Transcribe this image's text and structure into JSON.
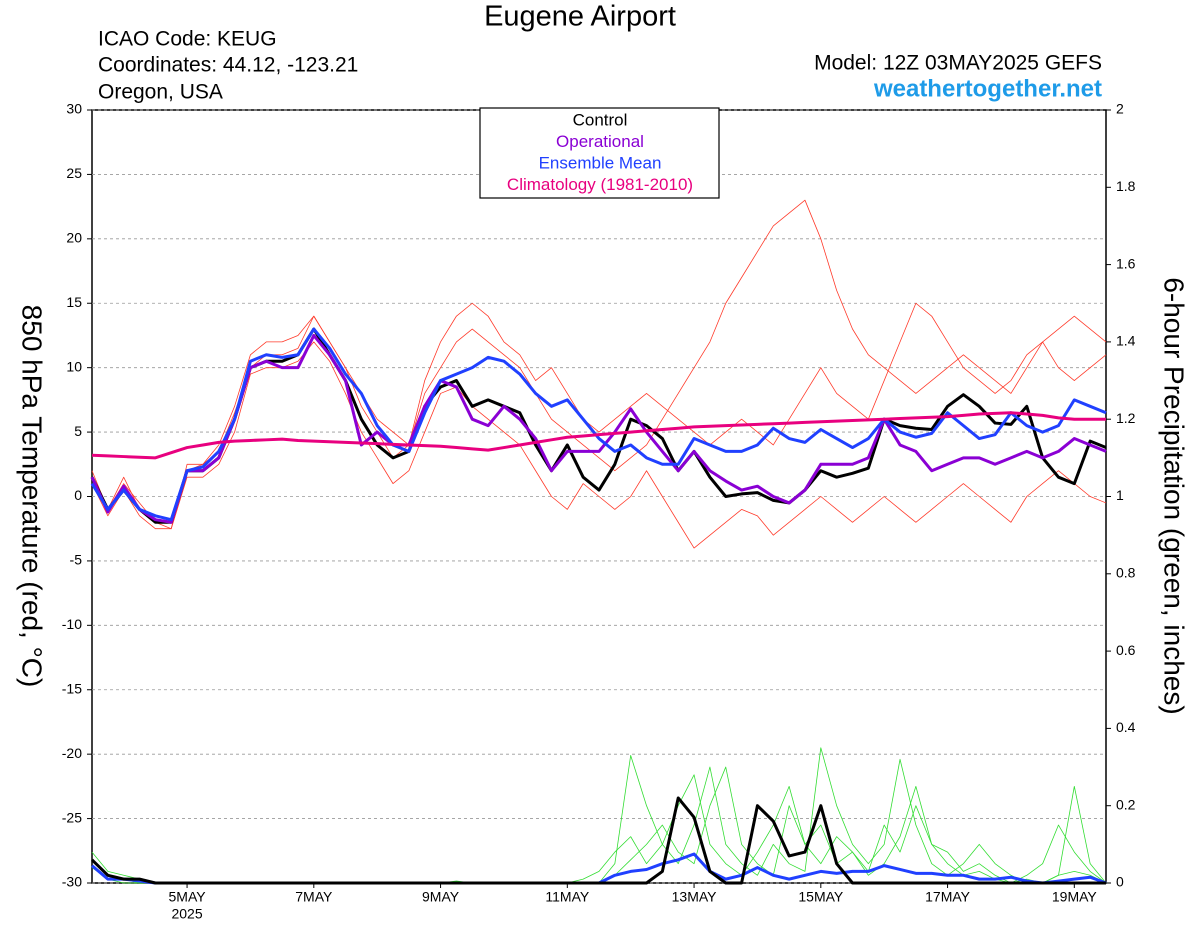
{
  "chart_data": {
    "type": "line",
    "title": "Eugene Airport",
    "info_left": [
      "ICAO Code: KEUG",
      "Coordinates: 44.12, -123.21",
      "Oregon, USA"
    ],
    "model": "Model: 12Z 03MAY2025 GEFS",
    "source": "weathertogether.net",
    "ylabel": "850 hPa Temperature (red, °C)",
    "y2label": "6-hour Precipitation (green, inches)",
    "categories": [
      null,
      null,
      null,
      null,
      null,
      null,
      "5MAY",
      null,
      null,
      null,
      null,
      null,
      null,
      null,
      "7MAY",
      null,
      null,
      null,
      null,
      null,
      null,
      null,
      "9MAY",
      null,
      null,
      null,
      null,
      null,
      null,
      null,
      "11MAY",
      null,
      null,
      null,
      null,
      null,
      null,
      null,
      "13MAY",
      null,
      null,
      null,
      null,
      null,
      null,
      null,
      "15MAY",
      null,
      null,
      null,
      null,
      null,
      null,
      null,
      "17MAY",
      null,
      null,
      null,
      null,
      null,
      null,
      null,
      "19MAY",
      null,
      null
    ],
    "x_year_label": "2025",
    "ylim": [
      -30,
      30
    ],
    "yticks": [
      -30,
      -25,
      -20,
      -15,
      -10,
      -5,
      0,
      5,
      10,
      15,
      20,
      25,
      30
    ],
    "y2lim": [
      0,
      2
    ],
    "y2ticks": [
      0,
      0.2,
      0.4,
      0.6,
      0.8,
      1,
      1.2,
      1.4,
      1.6,
      1.8,
      2
    ],
    "grid": true,
    "series": [
      {
        "color": "#ff3a2a",
        "values": [
          1.5,
          -1,
          1,
          -0.5,
          -2,
          -2.5,
          2.5,
          2.5,
          4,
          7,
          11,
          12,
          12,
          12.5,
          14,
          12,
          10,
          7,
          5,
          3,
          4,
          8,
          10,
          12,
          13,
          12,
          11,
          10,
          8,
          6,
          5,
          4,
          3,
          2,
          3,
          4,
          6,
          8,
          10,
          12,
          15,
          17,
          19,
          21,
          22,
          23,
          20,
          16,
          13,
          11,
          10,
          9,
          8,
          9,
          10,
          11,
          10,
          9,
          8,
          10,
          12,
          13,
          14,
          13,
          12
        ]
      },
      {
        "color": "#ff3a2a",
        "values": [
          1,
          -1.5,
          0.5,
          -1.5,
          -2.5,
          -2.5,
          1.5,
          1.5,
          2.5,
          5,
          9.5,
          10,
          10,
          10.5,
          12,
          10.5,
          8,
          5,
          3,
          1,
          2,
          5,
          8,
          8.5,
          7,
          6,
          5,
          4,
          2,
          0,
          -1,
          1,
          0,
          -1,
          0,
          2,
          0,
          -2,
          -4,
          -3,
          -2,
          -1,
          -1.5,
          -3,
          -2,
          -1,
          0,
          -1,
          -2,
          -1,
          0,
          -1,
          -2,
          -1,
          0,
          1,
          0,
          -1,
          -2,
          0,
          1,
          2,
          1,
          0,
          -0.5
        ]
      },
      {
        "color": "#ff3a2a",
        "values": [
          2,
          -1,
          1.5,
          -1,
          -2,
          -2,
          2,
          2.5,
          3.5,
          6.5,
          10,
          11,
          11,
          11.5,
          14,
          12,
          10,
          8,
          6,
          5,
          4,
          9,
          12,
          14,
          15,
          14,
          12,
          11,
          9,
          10,
          8,
          6,
          5,
          6,
          7,
          8,
          7,
          6,
          5,
          4,
          5,
          6,
          5,
          4,
          6,
          8,
          10,
          8,
          7,
          6,
          9,
          12,
          15,
          14,
          12,
          10,
          9,
          8,
          9,
          11,
          12,
          10,
          9,
          10,
          11
        ]
      },
      {
        "color": "#33dd33",
        "axis": "y2",
        "values": [
          0.08,
          0.03,
          0.02,
          0.01,
          0,
          0,
          0,
          0,
          0,
          0,
          0,
          0,
          0,
          0,
          0,
          0,
          0,
          0,
          0,
          0,
          0,
          0,
          0,
          0,
          0,
          0,
          0,
          0,
          0,
          0,
          0,
          0,
          0,
          0.05,
          0.33,
          0.2,
          0.1,
          0.05,
          0.15,
          0.3,
          0.1,
          0.05,
          0.02,
          0.1,
          0.05,
          0.03,
          0.35,
          0.2,
          0.1,
          0.05,
          0.1,
          0.32,
          0.15,
          0.05,
          0.02,
          0.05,
          0.1,
          0.05,
          0.02,
          0,
          0,
          0.02,
          0.25,
          0.05,
          0
        ]
      },
      {
        "color": "#33dd33",
        "axis": "y2",
        "values": [
          0.06,
          0.02,
          0.01,
          0,
          0,
          0,
          0,
          0,
          0,
          0,
          0,
          0,
          0,
          0,
          0,
          0,
          0,
          0,
          0,
          0,
          0,
          0,
          0,
          0,
          0,
          0,
          0,
          0,
          0,
          0,
          0,
          0.01,
          0.03,
          0.08,
          0.12,
          0.05,
          0.1,
          0.2,
          0.28,
          0.1,
          0.05,
          0.02,
          0.08,
          0.15,
          0.25,
          0.1,
          0.05,
          0.12,
          0.08,
          0.03,
          0.15,
          0.08,
          0.2,
          0.1,
          0.05,
          0.02,
          0.03,
          0.01,
          0,
          0.02,
          0.05,
          0.15,
          0.08,
          0.03,
          0
        ]
      },
      {
        "color": "#33dd33",
        "axis": "y2",
        "values": [
          0.04,
          0.01,
          0,
          0,
          0,
          0,
          0,
          0,
          0,
          0,
          0,
          0,
          0,
          0,
          0,
          0,
          0,
          0,
          0,
          0,
          0,
          0,
          0,
          0.005,
          0,
          0,
          0,
          0,
          0,
          0,
          0,
          0,
          0,
          0.02,
          0.06,
          0.1,
          0.15,
          0.08,
          0.05,
          0.2,
          0.3,
          0.1,
          0.05,
          0.02,
          0.2,
          0.1,
          0.15,
          0.05,
          0.08,
          0.02,
          0.05,
          0.12,
          0.25,
          0.1,
          0.08,
          0.03,
          0.05,
          0.02,
          0,
          0.01,
          0,
          0.02,
          0.03,
          0.02,
          0
        ]
      },
      {
        "name": "Control",
        "color": "#000000",
        "values": [
          1.5,
          -1,
          0.5,
          -1,
          -2,
          -2,
          2,
          2,
          3,
          6,
          10,
          10.5,
          10.5,
          11,
          13,
          11,
          9,
          6,
          4,
          3,
          3.5,
          7,
          8.5,
          9,
          7,
          7.5,
          7,
          6.5,
          4,
          2,
          4,
          1.5,
          0.5,
          2.5,
          6,
          5.5,
          4.5,
          2,
          3.5,
          1.5,
          0,
          0.2,
          0.3,
          -0.3,
          -0.5,
          0.5,
          2,
          1.5,
          1.8,
          2.2,
          6,
          5.5,
          5.3,
          5.2,
          7,
          7.9,
          7,
          5.7,
          5.6,
          7,
          3,
          1.5,
          1,
          4.3,
          3.8
        ]
      },
      {
        "name": "Operational",
        "color": "#8a00d4",
        "values": [
          1.5,
          -1.2,
          0.8,
          -1,
          -1.8,
          -2,
          2,
          2,
          3,
          6,
          10,
          10.5,
          10,
          10,
          12.5,
          11,
          9,
          4,
          5,
          4,
          4,
          7,
          9,
          8.5,
          6,
          5.5,
          7,
          6,
          4.5,
          2,
          3.5,
          3.5,
          3.5,
          5,
          6.8,
          5,
          3.5,
          2,
          3.5,
          2,
          1.2,
          0.5,
          0.8,
          0,
          -0.5,
          0.5,
          2.5,
          2.5,
          2.5,
          3,
          6,
          4,
          3.5,
          2,
          2.5,
          3,
          3,
          2.5,
          3,
          3.5,
          3,
          3.5,
          4.5,
          4,
          3.5
        ]
      },
      {
        "name": "Ensemble Mean",
        "color": "#2040ff",
        "values": [
          1,
          -1,
          0.5,
          -1,
          -1.5,
          -1.8,
          2,
          2.3,
          3.5,
          6,
          10.5,
          11,
          10.8,
          11,
          13,
          11.5,
          9.5,
          8,
          5.5,
          4,
          3.5,
          6.5,
          9,
          9.5,
          10,
          10.8,
          10.5,
          9.5,
          8,
          7,
          7.5,
          6,
          4.5,
          3.5,
          4,
          3,
          2.5,
          2.5,
          4.5,
          4,
          3.5,
          3.5,
          4,
          5.3,
          4.5,
          4.2,
          5.2,
          4.5,
          3.8,
          4.5,
          6,
          5,
          4.6,
          4.9,
          6.5,
          5.5,
          4.5,
          4.8,
          6.5,
          5.5,
          5,
          5.5,
          7.5,
          7,
          6.5
        ]
      },
      {
        "name": "Climatology (1981-2010)",
        "color": "#e8007f",
        "values": [
          3.2,
          3.15,
          3.1,
          3.05,
          3.0,
          3.4,
          3.8,
          4.0,
          4.2,
          4.3,
          4.35,
          4.4,
          4.45,
          4.35,
          4.3,
          4.25,
          4.2,
          4.15,
          4.1,
          4.05,
          4.0,
          3.95,
          3.9,
          3.8,
          3.7,
          3.6,
          3.8,
          4.0,
          4.2,
          4.4,
          4.6,
          4.7,
          4.8,
          4.9,
          5.0,
          5.1,
          5.2,
          5.3,
          5.4,
          5.45,
          5.5,
          5.55,
          5.6,
          5.65,
          5.7,
          5.75,
          5.8,
          5.85,
          5.9,
          5.95,
          6.0,
          6.05,
          6.1,
          6.15,
          6.2,
          6.3,
          6.4,
          6.45,
          6.5,
          6.4,
          6.3,
          6.1,
          6.0,
          6.0,
          6.0
        ]
      },
      {
        "color": "#2040ff",
        "axis": "y2",
        "values": [
          0.045,
          0.01,
          0.01,
          0.005,
          0,
          0,
          0,
          0,
          0,
          0,
          0,
          0,
          0,
          0,
          0,
          0,
          0,
          0,
          0,
          0,
          0,
          0,
          0,
          0,
          0,
          0,
          0,
          0,
          0,
          0,
          0,
          0,
          0,
          0.02,
          0.03,
          0.035,
          0.05,
          0.06,
          0.075,
          0.03,
          0.01,
          0.02,
          0.04,
          0.02,
          0.01,
          0.02,
          0.03,
          0.025,
          0.03,
          0.03,
          0.045,
          0.035,
          0.025,
          0.025,
          0.02,
          0.02,
          0.01,
          0.01,
          0.015,
          0.005,
          0,
          0.005,
          0.01,
          0.015,
          0
        ]
      },
      {
        "color": "#000000",
        "axis": "y2",
        "values": [
          0.06,
          0.02,
          0.01,
          0.01,
          0,
          0,
          0,
          0,
          0,
          0,
          0,
          0,
          0,
          0,
          0,
          0,
          0,
          0,
          0,
          0,
          0,
          0,
          0,
          0,
          0,
          0,
          0,
          0,
          0,
          0,
          0,
          0,
          0,
          0,
          0,
          0,
          0.03,
          0.22,
          0.17,
          0.03,
          0,
          0,
          0.2,
          0.16,
          0.07,
          0.08,
          0.2,
          0.05,
          0,
          0,
          0,
          0,
          0,
          0,
          0,
          0,
          0,
          0,
          0,
          0,
          0,
          0,
          0,
          0,
          0
        ]
      }
    ]
  }
}
